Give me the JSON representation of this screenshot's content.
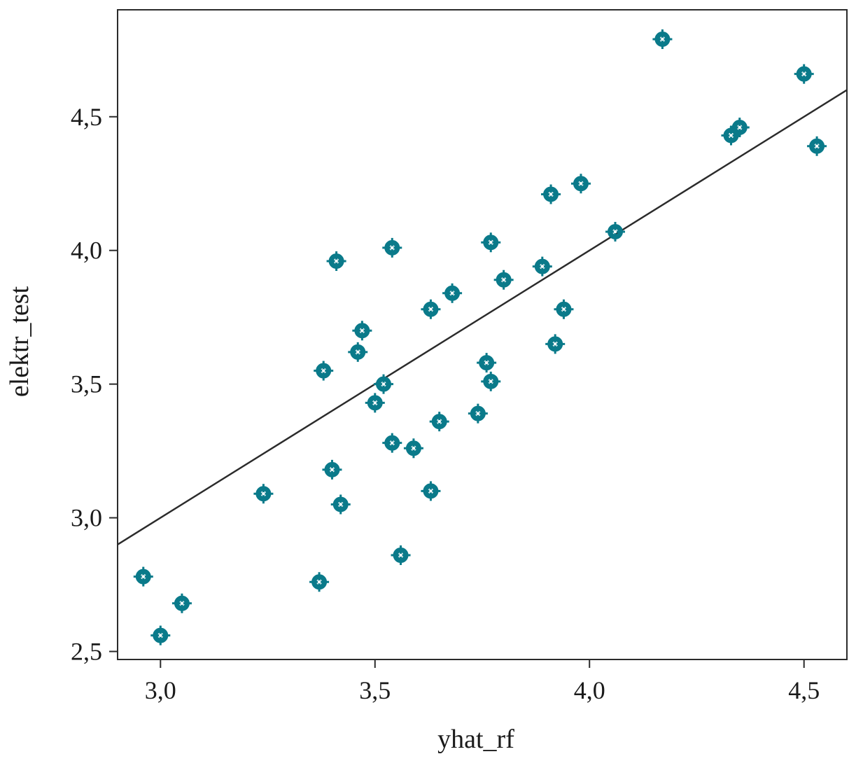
{
  "chart_data": {
    "type": "scatter",
    "title": "",
    "xlabel": "yhat_rf",
    "ylabel": "elektr_test",
    "xlim": [
      2.9,
      4.6
    ],
    "ylim": [
      2.47,
      4.9
    ],
    "x_ticks": [
      3.0,
      3.5,
      4.0,
      4.5
    ],
    "x_tick_labels": [
      "3,0",
      "3,5",
      "4,0",
      "4,5"
    ],
    "y_ticks": [
      2.5,
      3.0,
      3.5,
      4.0,
      4.5
    ],
    "y_tick_labels": [
      "2,5",
      "3,0",
      "3,5",
      "4,0",
      "4,5"
    ],
    "grid": false,
    "legend": "none",
    "colors": {
      "points": "#0a7a8a",
      "line": "#2b2b2b",
      "axis": "#2b2b2b"
    },
    "series": [
      {
        "name": "observations",
        "points": [
          {
            "x": 2.96,
            "y": 2.78
          },
          {
            "x": 3.0,
            "y": 2.56
          },
          {
            "x": 3.05,
            "y": 2.68
          },
          {
            "x": 3.24,
            "y": 3.09
          },
          {
            "x": 3.37,
            "y": 2.76
          },
          {
            "x": 3.38,
            "y": 3.55
          },
          {
            "x": 3.4,
            "y": 3.18
          },
          {
            "x": 3.41,
            "y": 3.96
          },
          {
            "x": 3.42,
            "y": 3.05
          },
          {
            "x": 3.46,
            "y": 3.62
          },
          {
            "x": 3.47,
            "y": 3.7
          },
          {
            "x": 3.5,
            "y": 3.43
          },
          {
            "x": 3.52,
            "y": 3.5
          },
          {
            "x": 3.54,
            "y": 4.01
          },
          {
            "x": 3.54,
            "y": 3.28
          },
          {
            "x": 3.56,
            "y": 2.86
          },
          {
            "x": 3.59,
            "y": 3.26
          },
          {
            "x": 3.63,
            "y": 3.78
          },
          {
            "x": 3.63,
            "y": 3.1
          },
          {
            "x": 3.65,
            "y": 3.36
          },
          {
            "x": 3.68,
            "y": 3.84
          },
          {
            "x": 3.74,
            "y": 3.39
          },
          {
            "x": 3.76,
            "y": 3.58
          },
          {
            "x": 3.77,
            "y": 3.51
          },
          {
            "x": 3.77,
            "y": 4.03
          },
          {
            "x": 3.8,
            "y": 3.89
          },
          {
            "x": 3.89,
            "y": 3.94
          },
          {
            "x": 3.91,
            "y": 4.21
          },
          {
            "x": 3.92,
            "y": 3.65
          },
          {
            "x": 3.94,
            "y": 3.78
          },
          {
            "x": 3.98,
            "y": 4.25
          },
          {
            "x": 4.06,
            "y": 4.07
          },
          {
            "x": 4.17,
            "y": 4.79
          },
          {
            "x": 4.33,
            "y": 4.43
          },
          {
            "x": 4.35,
            "y": 4.46
          },
          {
            "x": 4.5,
            "y": 4.66
          },
          {
            "x": 4.53,
            "y": 4.39
          }
        ]
      }
    ],
    "reference_line": {
      "name": "identity line",
      "x": [
        2.9,
        4.6
      ],
      "y": [
        2.9,
        4.6
      ]
    }
  }
}
